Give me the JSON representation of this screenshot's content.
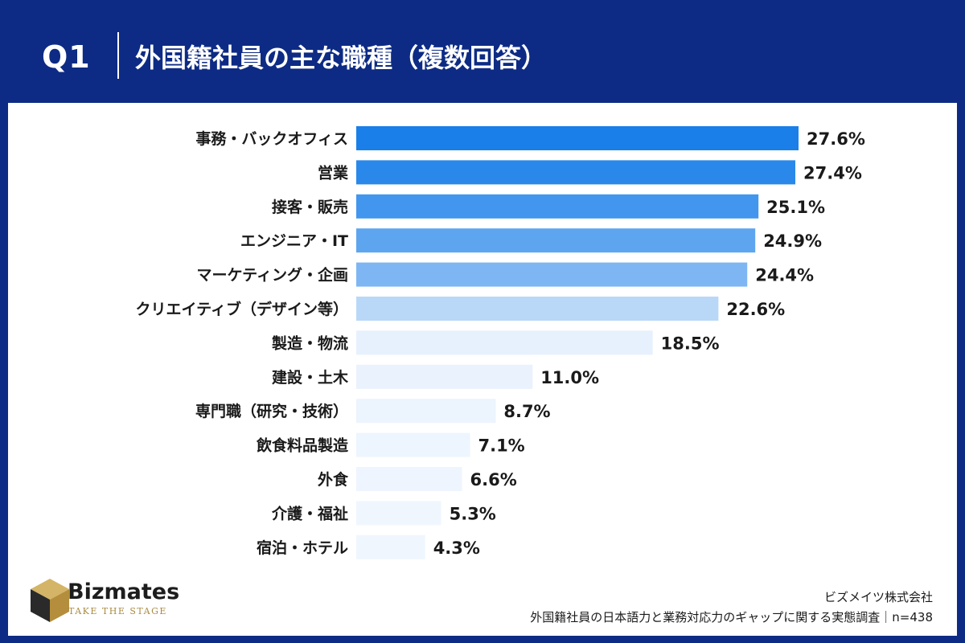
{
  "header": {
    "question_number": "Q1",
    "title": "外国籍社員の主な職種（複数回答）"
  },
  "chart_data": {
    "type": "bar",
    "orientation": "horizontal",
    "title": "外国籍社員の主な職種（複数回答）",
    "categories": [
      "事務・バックオフィス",
      "営業",
      "接客・販売",
      "エンジニア・IT",
      "マーケティング・企画",
      "クリエイティブ（デザイン等）",
      "製造・物流",
      "建設・土木",
      "専門職（研究・技術）",
      "飲食料品製造",
      "外食",
      "介護・福祉",
      "宿泊・ホテル"
    ],
    "values": [
      27.6,
      27.4,
      25.1,
      24.9,
      24.4,
      22.6,
      18.5,
      11.0,
      8.7,
      7.1,
      6.6,
      5.3,
      4.3
    ],
    "value_labels": [
      "27.6%",
      "27.4%",
      "25.1%",
      "24.9%",
      "24.4%",
      "22.6%",
      "18.5%",
      "11.0%",
      "8.7%",
      "7.1%",
      "6.6%",
      "5.3%",
      "4.3%"
    ],
    "bar_colors": [
      "#1a7fe8",
      "#2a88ea",
      "#4296ee",
      "#5ea5f0",
      "#7db6f3",
      "#b9d8f8",
      "#e6f1fd",
      "#e9f2fd",
      "#ecf4fd",
      "#edf5fe",
      "#eef5fe",
      "#eff6fe",
      "#f0f6fe"
    ],
    "xlim": [
      0,
      27.6
    ],
    "grid": false,
    "legend": "none"
  },
  "footer": {
    "brand_name": "Bizmates",
    "brand_tagline": "TAKE THE STAGE",
    "company": "ビズメイツ株式会社",
    "survey": "外国籍社員の日本語力と業務対応力のギャップに関する実態調査｜n=438"
  },
  "colors": {
    "background": "#0d2b84",
    "panel": "#ffffff",
    "text": "#1a1a1a",
    "logo_gold": "#c9a24a",
    "logo_dark": "#2a2a2a"
  }
}
